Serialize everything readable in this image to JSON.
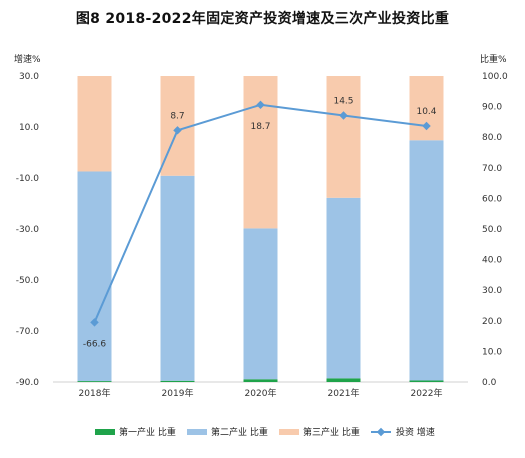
{
  "chart_data": {
    "type": "bar",
    "title": "图8    2018-2022年固定资产投资增速及三次产业投资比重",
    "ylabel_left": "增速%",
    "ylabel_right": "比重%",
    "categories": [
      "2018年",
      "2019年",
      "2020年",
      "2021年",
      "2022年"
    ],
    "y_left_range": [
      -90,
      30
    ],
    "y_left_ticks": [
      "30.0",
      "10.0",
      "-10.0",
      "-30.0",
      "-50.0",
      "-70.0",
      "-90.0"
    ],
    "y_right_range": [
      0,
      100
    ],
    "y_right_ticks": [
      "100.0",
      "90.0",
      "80.0",
      "70.0",
      "60.0",
      "50.0",
      "40.0",
      "30.0",
      "20.0",
      "10.0",
      "0.0"
    ],
    "series": [
      {
        "name": "第一产业 比重",
        "kind": "stacked-bar",
        "axis": "right",
        "color": "#1fa34a",
        "values": [
          0.3,
          0.4,
          0.9,
          1.2,
          0.5
        ]
      },
      {
        "name": "第二产业 比重",
        "kind": "stacked-bar",
        "axis": "right",
        "color": "#9dc3e6",
        "values": [
          68.5,
          67.0,
          49.3,
          59.0,
          78.5
        ]
      },
      {
        "name": "第三产业 比重",
        "kind": "stacked-bar",
        "axis": "right",
        "color": "#f8cbad",
        "values": [
          31.2,
          32.6,
          49.8,
          39.8,
          21.0
        ]
      },
      {
        "name": "投资 增速",
        "kind": "line",
        "axis": "left",
        "color": "#5b9bd5",
        "values": [
          -66.6,
          8.7,
          18.7,
          14.5,
          10.4
        ]
      }
    ],
    "data_labels": [
      "-66.6",
      "8.7",
      "18.7",
      "14.5",
      "10.4"
    ]
  }
}
